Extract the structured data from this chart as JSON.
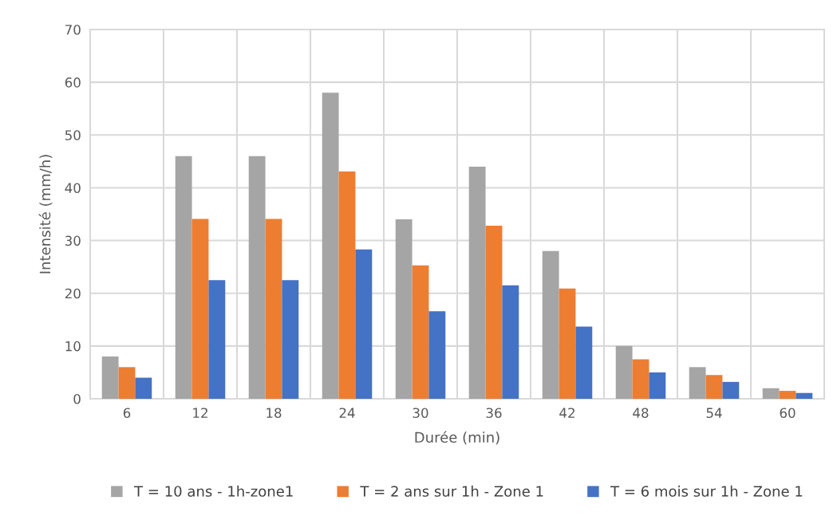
{
  "chart_data": {
    "type": "bar",
    "xlabel": "Durée (min)",
    "ylabel": "Intensité (mm/h)",
    "categories": [
      "6",
      "12",
      "18",
      "24",
      "30",
      "36",
      "42",
      "48",
      "54",
      "60"
    ],
    "series": [
      {
        "name": "T = 10 ans - 1h-zone1",
        "color": "#a5a5a5",
        "values": [
          8,
          46,
          46,
          58,
          34,
          44,
          28,
          10,
          6,
          2
        ]
      },
      {
        "name": "T = 2 ans sur 1h - Zone 1",
        "color": "#ed7d31",
        "values": [
          6,
          34.1,
          34.1,
          43.1,
          25.3,
          32.8,
          20.9,
          7.5,
          4.5,
          1.5
        ]
      },
      {
        "name": "T = 6 mois sur 1h - Zone 1",
        "color": "#4472c4",
        "values": [
          4,
          22.5,
          22.5,
          28.3,
          16.6,
          21.5,
          13.7,
          5,
          3.2,
          1.1
        ]
      }
    ],
    "ylim": [
      0,
      70
    ],
    "yticks": [
      0,
      10,
      20,
      30,
      40,
      50,
      60,
      70
    ],
    "grid": true,
    "legend": "bottom"
  }
}
